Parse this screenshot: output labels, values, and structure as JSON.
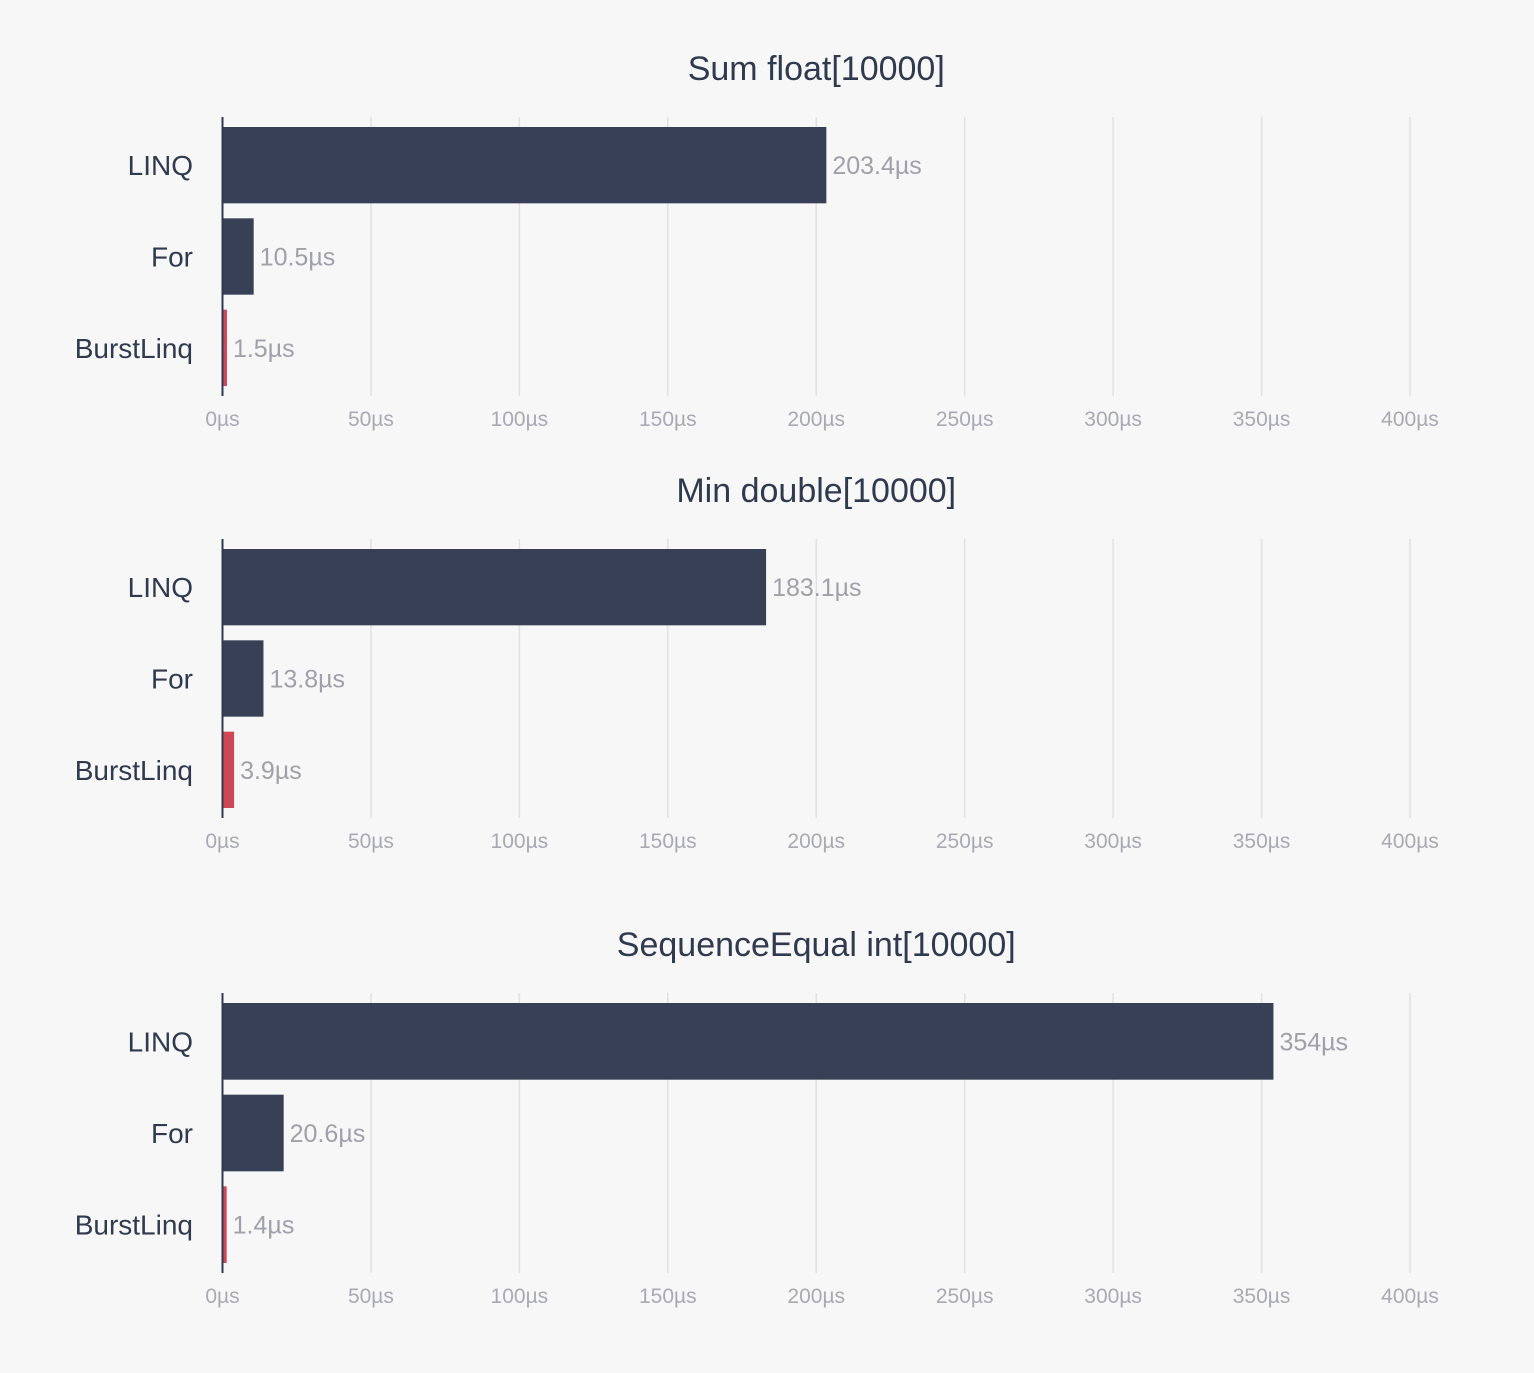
{
  "chart_data": [
    {
      "type": "bar",
      "orientation": "horizontal",
      "title": "Sum float[10000]",
      "categories": [
        "LINQ",
        "For",
        "BurstLinq"
      ],
      "values": [
        203.4,
        10.5,
        1.5
      ],
      "value_labels": [
        "203.4µs",
        "10.5µs",
        "1.5µs"
      ],
      "bar_colors": [
        "#374055",
        "#374055",
        "#cf4656"
      ],
      "xlim": [
        0,
        400
      ],
      "x_ticks": [
        0,
        50,
        100,
        150,
        200,
        250,
        300,
        350,
        400
      ],
      "x_tick_labels": [
        "0µs",
        "50µs",
        "100µs",
        "150µs",
        "200µs",
        "250µs",
        "300µs",
        "350µs",
        "400µs"
      ],
      "grid": true,
      "legend": false
    },
    {
      "type": "bar",
      "orientation": "horizontal",
      "title": "Min double[10000]",
      "categories": [
        "LINQ",
        "For",
        "BurstLinq"
      ],
      "values": [
        183.1,
        13.8,
        3.9
      ],
      "value_labels": [
        "183.1µs",
        "13.8µs",
        "3.9µs"
      ],
      "bar_colors": [
        "#374055",
        "#374055",
        "#cf4656"
      ],
      "xlim": [
        0,
        400
      ],
      "x_ticks": [
        0,
        50,
        100,
        150,
        200,
        250,
        300,
        350,
        400
      ],
      "x_tick_labels": [
        "0µs",
        "50µs",
        "100µs",
        "150µs",
        "200µs",
        "250µs",
        "300µs",
        "350µs",
        "400µs"
      ],
      "grid": true,
      "legend": false
    },
    {
      "type": "bar",
      "orientation": "horizontal",
      "title": "SequenceEqual int[10000]",
      "categories": [
        "LINQ",
        "For",
        "BurstLinq"
      ],
      "values": [
        354,
        20.6,
        1.4
      ],
      "value_labels": [
        "354µs",
        "20.6µs",
        "1.4µs"
      ],
      "bar_colors": [
        "#374055",
        "#374055",
        "#cf4656"
      ],
      "xlim": [
        0,
        400
      ],
      "x_ticks": [
        0,
        50,
        100,
        150,
        200,
        250,
        300,
        350,
        400
      ],
      "x_tick_labels": [
        "0µs",
        "50µs",
        "100µs",
        "150µs",
        "200µs",
        "250µs",
        "300µs",
        "350µs",
        "400µs"
      ],
      "grid": true,
      "legend": false
    }
  ]
}
